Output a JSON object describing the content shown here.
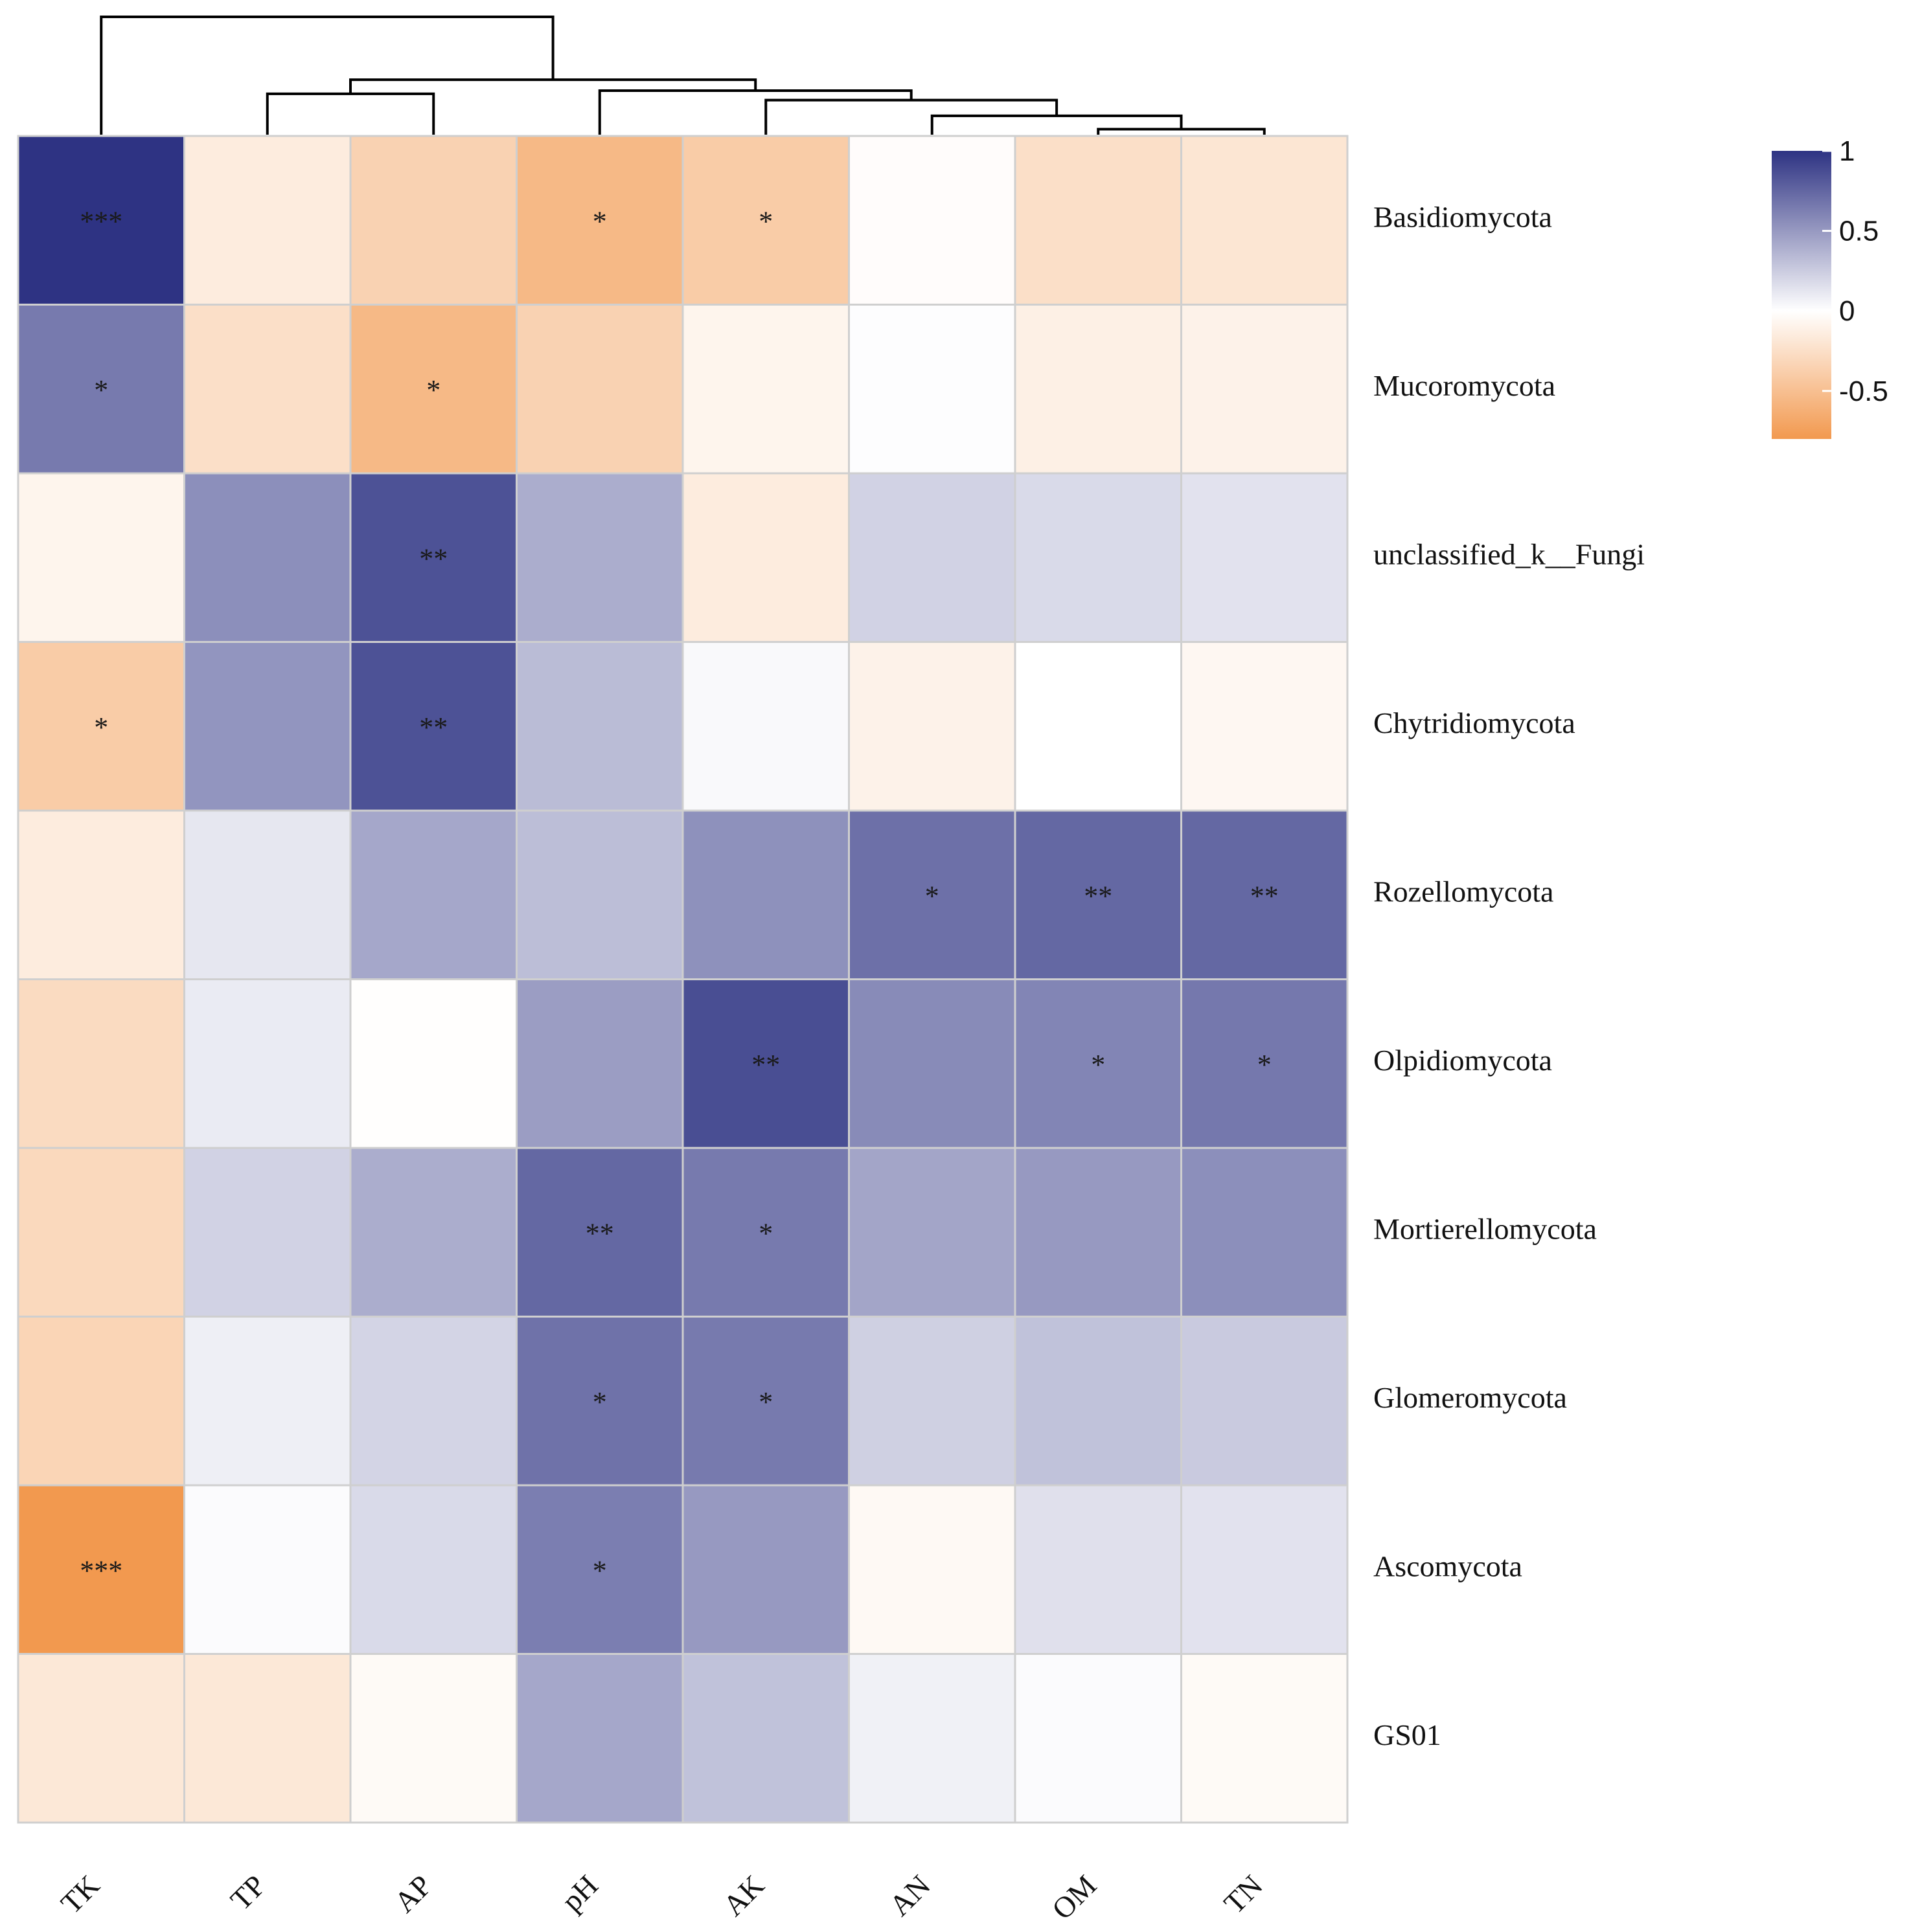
{
  "chart_data": {
    "type": "heatmap",
    "title": "",
    "columns": [
      "TK",
      "TP",
      "AP",
      "pH",
      "AK",
      "AN",
      "OM",
      "TN"
    ],
    "rows": [
      "Basidiomycota",
      "Mucoromycota",
      "unclassified_k__Fungi",
      "Chytridiomycota",
      "Rozellomycota",
      "Olpidiomycota",
      "Mortierellomycota",
      "Glomeromycota",
      "Ascomycota",
      "GS01"
    ],
    "values": [
      [
        1.0,
        -0.15,
        -0.35,
        -0.55,
        -0.4,
        -0.02,
        -0.25,
        -0.2
      ],
      [
        0.65,
        -0.25,
        -0.55,
        -0.35,
        -0.08,
        0.01,
        -0.12,
        -0.1
      ],
      [
        -0.08,
        0.55,
        0.85,
        0.4,
        -0.15,
        0.22,
        0.18,
        0.14
      ],
      [
        -0.4,
        0.52,
        0.85,
        0.33,
        0.03,
        -0.1,
        0.0,
        -0.06
      ],
      [
        -0.15,
        0.12,
        0.43,
        0.32,
        0.54,
        0.7,
        0.74,
        0.74
      ],
      [
        -0.28,
        0.1,
        -0.01,
        0.48,
        0.87,
        0.57,
        0.6,
        0.66
      ],
      [
        -0.3,
        0.22,
        0.4,
        0.74,
        0.65,
        0.44,
        0.5,
        0.55
      ],
      [
        -0.33,
        0.08,
        0.21,
        0.69,
        0.65,
        0.23,
        0.3,
        0.26
      ],
      [
        -0.8,
        0.02,
        0.18,
        0.63,
        0.5,
        -0.05,
        0.15,
        0.14
      ],
      [
        -0.18,
        -0.18,
        -0.04,
        0.43,
        0.3,
        0.07,
        0.02,
        -0.04
      ]
    ],
    "significance": [
      [
        "***",
        "",
        "",
        "*",
        "*",
        "",
        "",
        ""
      ],
      [
        "*",
        "",
        "*",
        "",
        "",
        "",
        "",
        ""
      ],
      [
        "",
        "",
        "**",
        "",
        "",
        "",
        "",
        ""
      ],
      [
        "*",
        "",
        "**",
        "",
        "",
        "",
        "",
        ""
      ],
      [
        "",
        "",
        "",
        "",
        "",
        "*",
        "**",
        "**"
      ],
      [
        "",
        "",
        "",
        "",
        "**",
        "",
        "*",
        "*"
      ],
      [
        "",
        "",
        "",
        "**",
        "*",
        "",
        "",
        ""
      ],
      [
        "",
        "",
        "",
        "*",
        "*",
        "",
        "",
        ""
      ],
      [
        "***",
        "",
        "",
        "*",
        "",
        "",
        "",
        ""
      ],
      [
        "",
        "",
        "",
        "",
        "",
        "",
        "",
        ""
      ]
    ],
    "color_range": [
      -0.8,
      1
    ],
    "colors": {
      "low": "#f2994f",
      "mid": "#ffffff",
      "high": "#2e3383"
    },
    "legend": {
      "placement": "top-right",
      "ticks": [
        "1",
        "0.5",
        "0",
        "-0.5"
      ],
      "tick_values": [
        1,
        0.5,
        0,
        -0.5
      ]
    },
    "dendrogram": {
      "leaves": [
        "TK",
        "TP",
        "AP",
        "pH",
        "AK",
        "AN",
        "OM",
        "TN"
      ],
      "merges": [
        [
          6,
          7,
          0.35
        ],
        [
          5,
          8,
          1.2
        ],
        [
          4,
          9,
          2.2
        ],
        [
          3,
          10,
          2.8
        ],
        [
          1,
          2,
          2.6
        ],
        [
          11,
          12,
          3.5
        ],
        [
          0,
          13,
          7.5
        ]
      ],
      "max_height": 7.5
    }
  }
}
